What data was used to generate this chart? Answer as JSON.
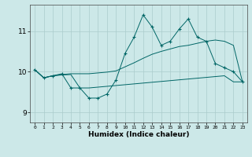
{
  "xlabel": "Humidex (Indice chaleur)",
  "x_ticks": [
    0,
    1,
    2,
    3,
    4,
    5,
    6,
    7,
    8,
    9,
    10,
    11,
    12,
    13,
    14,
    15,
    16,
    17,
    18,
    19,
    20,
    21,
    22,
    23
  ],
  "xlim": [
    -0.5,
    23.5
  ],
  "ylim": [
    8.75,
    11.65
  ],
  "y_ticks": [
    9,
    10,
    11
  ],
  "bg_color": "#cce8e8",
  "line_color": "#006666",
  "grid_color": "#aacccc",
  "series1_x": [
    0,
    1,
    2,
    3,
    4,
    5,
    6,
    7,
    8,
    9,
    10,
    11,
    12,
    13,
    14,
    15,
    16,
    17,
    18,
    19,
    20,
    21,
    22,
    23
  ],
  "series1_y": [
    10.05,
    9.85,
    9.9,
    9.95,
    9.6,
    9.6,
    9.35,
    9.35,
    9.45,
    9.8,
    10.45,
    10.85,
    11.4,
    11.1,
    10.65,
    10.75,
    11.05,
    11.3,
    10.85,
    10.75,
    10.2,
    10.1,
    10.0,
    9.75
  ],
  "series2_x": [
    0,
    1,
    2,
    3,
    4,
    5,
    6,
    7,
    8,
    9,
    10,
    11,
    12,
    13,
    14,
    15,
    16,
    17,
    18,
    19,
    20,
    21,
    22,
    23
  ],
  "series2_y": [
    10.05,
    9.85,
    9.9,
    9.93,
    9.95,
    9.95,
    9.95,
    9.97,
    9.99,
    10.02,
    10.12,
    10.22,
    10.33,
    10.43,
    10.5,
    10.56,
    10.62,
    10.65,
    10.7,
    10.75,
    10.78,
    10.75,
    10.65,
    9.75
  ],
  "series3_x": [
    0,
    1,
    2,
    3,
    4,
    5,
    6,
    7,
    8,
    9,
    10,
    11,
    12,
    13,
    14,
    15,
    16,
    17,
    18,
    19,
    20,
    21,
    22,
    23
  ],
  "series3_y": [
    10.05,
    9.85,
    9.9,
    9.92,
    9.93,
    9.6,
    9.6,
    9.62,
    9.64,
    9.66,
    9.68,
    9.7,
    9.72,
    9.74,
    9.76,
    9.78,
    9.8,
    9.82,
    9.84,
    9.86,
    9.88,
    9.9,
    9.75,
    9.75
  ]
}
